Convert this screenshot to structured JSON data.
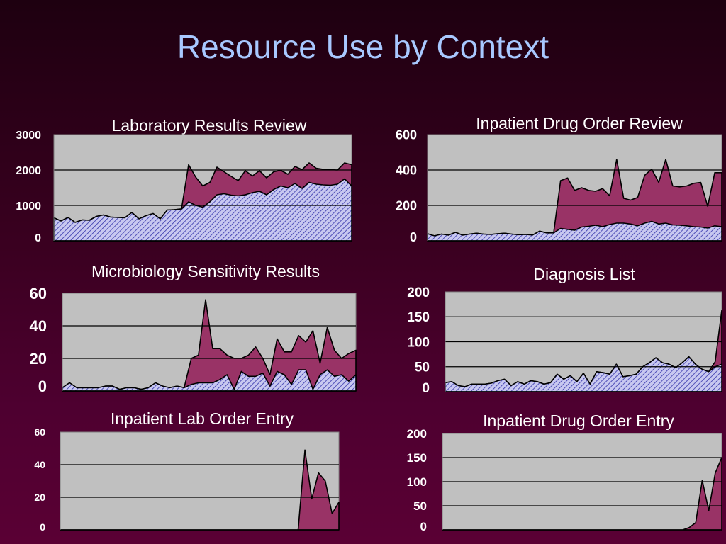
{
  "slide": {
    "title": "Resource Use by Context"
  },
  "colors": {
    "background_top": "#1e0010",
    "background_bottom": "#5a0034",
    "title_color": "#a8c8ff",
    "plot_fill": "#c0c0c0",
    "total_area_fill": "#993366",
    "base_area_fill": "#c8c8f0",
    "base_area_hatch": "#3333aa",
    "gridline": "#000000",
    "chart_title_color": "#ffffff",
    "tick_label_color": "#ffffff"
  },
  "chart_data": [
    {
      "type": "area",
      "title": "Laboratory Results Review",
      "ylim": [
        0,
        3000
      ],
      "yticks": [
        0,
        1000,
        2000,
        3000
      ],
      "grid": true,
      "series": [
        {
          "values": [
            650,
            560,
            660,
            520,
            590,
            580,
            690,
            730,
            670,
            660,
            650,
            800,
            620,
            710,
            770,
            620,
            870,
            880,
            900,
            2150,
            1800,
            1550,
            1650,
            2080,
            1950,
            1820,
            1700,
            1980,
            1830,
            1980,
            1780,
            1950,
            1990,
            1880,
            2100,
            2010,
            2200,
            2050,
            2020,
            2010,
            2000,
            2200,
            2150
          ]
        },
        {
          "values": [
            650,
            560,
            660,
            520,
            590,
            580,
            690,
            730,
            670,
            660,
            650,
            800,
            620,
            710,
            770,
            620,
            870,
            880,
            900,
            1100,
            1000,
            950,
            1100,
            1300,
            1330,
            1290,
            1270,
            1300,
            1360,
            1400,
            1300,
            1450,
            1550,
            1500,
            1620,
            1480,
            1650,
            1600,
            1580,
            1570,
            1600,
            1750,
            1550
          ]
        }
      ]
    },
    {
      "type": "area",
      "title": "Inpatient Drug Order Review",
      "ylim": [
        0,
        600
      ],
      "yticks": [
        0,
        200,
        400,
        600
      ],
      "grid": true,
      "series": [
        {
          "values": [
            40,
            28,
            38,
            32,
            48,
            32,
            38,
            43,
            38,
            36,
            40,
            43,
            38,
            35,
            36,
            33,
            55,
            45,
            45,
            340,
            355,
            285,
            300,
            285,
            280,
            295,
            255,
            460,
            240,
            230,
            245,
            370,
            405,
            330,
            460,
            310,
            305,
            310,
            325,
            330,
            195,
            385,
            385
          ]
        },
        {
          "values": [
            40,
            28,
            38,
            32,
            48,
            32,
            38,
            43,
            38,
            36,
            40,
            43,
            38,
            35,
            36,
            33,
            55,
            45,
            45,
            70,
            65,
            60,
            78,
            82,
            88,
            80,
            92,
            100,
            100,
            95,
            85,
            100,
            110,
            95,
            100,
            90,
            88,
            85,
            80,
            78,
            72,
            85,
            80
          ]
        }
      ]
    },
    {
      "type": "area",
      "title": "Microbiology Sensitivity Results",
      "ylim": [
        0,
        60
      ],
      "yticks": [
        0,
        20,
        40,
        60
      ],
      "grid": true,
      "series": [
        {
          "values": [
            2,
            5,
            2,
            2,
            2,
            2,
            3,
            3,
            1,
            2,
            2,
            1,
            2,
            5,
            3,
            2,
            3,
            2,
            20,
            22,
            56,
            26,
            26,
            22,
            20,
            20,
            22,
            27,
            20,
            10,
            32,
            24,
            24,
            34,
            30,
            37,
            17,
            39,
            25,
            20,
            23,
            25
          ]
        },
        {
          "values": [
            2,
            5,
            2,
            2,
            2,
            2,
            3,
            3,
            1,
            2,
            2,
            1,
            2,
            5,
            3,
            2,
            3,
            2,
            4,
            5,
            5,
            5,
            7,
            10,
            1,
            12,
            9,
            9,
            11,
            3,
            12,
            10,
            4,
            13,
            13,
            1,
            10,
            13,
            9,
            10,
            6,
            10
          ]
        }
      ]
    },
    {
      "type": "area",
      "title": "Diagnosis List",
      "ylim": [
        0,
        200
      ],
      "yticks": [
        0,
        50,
        100,
        150,
        200
      ],
      "grid": true,
      "series": [
        {
          "values": [
            18,
            20,
            12,
            10,
            15,
            15,
            15,
            17,
            22,
            25,
            12,
            20,
            15,
            22,
            20,
            15,
            18,
            35,
            25,
            32,
            20,
            37,
            15,
            40,
            38,
            35,
            55,
            30,
            32,
            35,
            50,
            58,
            68,
            58,
            55,
            48,
            58,
            70,
            55,
            45,
            40,
            60,
            163
          ]
        },
        {
          "values": [
            18,
            20,
            12,
            10,
            15,
            15,
            15,
            17,
            22,
            25,
            12,
            20,
            15,
            22,
            20,
            15,
            18,
            35,
            25,
            32,
            20,
            37,
            15,
            40,
            38,
            35,
            55,
            30,
            32,
            35,
            50,
            58,
            68,
            58,
            55,
            48,
            58,
            70,
            55,
            45,
            40,
            50,
            55
          ]
        }
      ]
    },
    {
      "type": "area",
      "title": "Inpatient Lab Order Entry",
      "ylim": [
        0,
        60
      ],
      "yticks": [
        0,
        20,
        40,
        60
      ],
      "grid": true,
      "series": [
        {
          "values": [
            0,
            0,
            0,
            0,
            0,
            0,
            0,
            0,
            0,
            0,
            0,
            0,
            0,
            0,
            0,
            0,
            0,
            0,
            0,
            0,
            0,
            0,
            0,
            0,
            0,
            0,
            0,
            0,
            0,
            0,
            0,
            0,
            0,
            0,
            0,
            0,
            49,
            19,
            35,
            30,
            10,
            17
          ]
        }
      ]
    },
    {
      "type": "area",
      "title": "Inpatient Drug Order Entry",
      "ylim": [
        0,
        200
      ],
      "yticks": [
        0,
        50,
        100,
        150,
        200
      ],
      "grid": true,
      "series": [
        {
          "values": [
            0,
            0,
            0,
            0,
            0,
            0,
            0,
            0,
            0,
            0,
            0,
            0,
            0,
            0,
            0,
            0,
            0,
            0,
            0,
            0,
            0,
            0,
            0,
            0,
            0,
            0,
            0,
            0,
            0,
            0,
            0,
            0,
            0,
            0,
            0,
            0,
            0,
            0,
            5,
            15,
            103,
            40,
            118,
            150
          ]
        }
      ]
    }
  ]
}
